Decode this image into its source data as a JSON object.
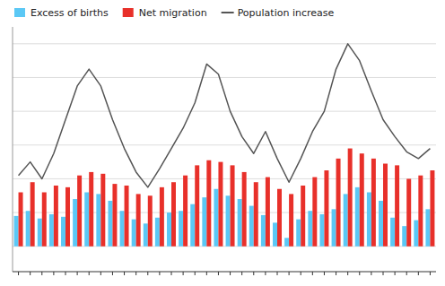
{
  "chart_data": {
    "type": "bar",
    "categories": [
      null,
      null,
      null,
      null,
      null,
      null,
      null,
      null,
      null,
      null,
      null,
      null,
      null,
      null,
      null,
      null,
      null,
      null,
      null,
      null,
      null,
      null,
      null,
      null,
      null,
      null,
      null,
      null,
      null,
      null,
      null,
      null,
      null,
      null,
      null,
      null
    ],
    "series": [
      {
        "name": "Excess of births",
        "type": "bar",
        "color": "#5BC8F5",
        "values": [
          1800,
          2100,
          1650,
          1900,
          1750,
          2800,
          3200,
          3100,
          2700,
          2100,
          1600,
          1350,
          1700,
          2000,
          2100,
          2500,
          2900,
          3400,
          3000,
          2800,
          2400,
          1850,
          1400,
          500,
          1600,
          2100,
          1900,
          2200,
          3100,
          3500,
          3200,
          2700,
          1700,
          1200,
          1550,
          2200
        ]
      },
      {
        "name": "Net migration",
        "type": "bar",
        "color": "#E8302A",
        "values": [
          3200,
          3800,
          3200,
          3600,
          3500,
          4200,
          4400,
          4300,
          3700,
          3600,
          3100,
          3000,
          3500,
          3800,
          4200,
          4800,
          5100,
          5000,
          4800,
          4400,
          3800,
          4100,
          3400,
          3100,
          3600,
          4100,
          4500,
          5200,
          5800,
          5500,
          5200,
          4900,
          4800,
          4000,
          4200,
          4500
        ]
      },
      {
        "name": "Population increase",
        "type": "line",
        "color": "#555555",
        "values": [
          4200,
          5000,
          4000,
          5500,
          7500,
          9500,
          10500,
          9500,
          7500,
          5800,
          4400,
          3500,
          4600,
          5800,
          7000,
          8500,
          10800,
          10200,
          8000,
          6500,
          5500,
          6800,
          5200,
          3800,
          5200,
          6800,
          8000,
          10500,
          12000,
          11000,
          9200,
          7500,
          6500,
          5600,
          5200,
          5800
        ]
      }
    ],
    "ylim": [
      -1500,
      13000
    ],
    "yticks": [
      0,
      2000,
      4000,
      6000,
      8000,
      10000,
      12000
    ],
    "grid": true,
    "legend": "upper left",
    "tick_labels": false
  }
}
